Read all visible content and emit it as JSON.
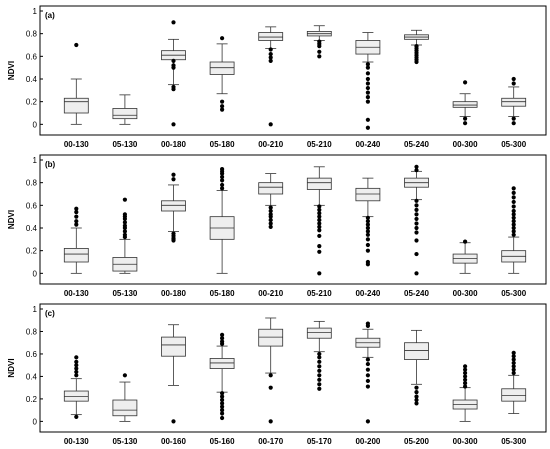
{
  "chart_data": [
    {
      "type": "box",
      "panel_label": "(a)",
      "ylabel": "NDVI",
      "ylim": [
        -0.05,
        1.0
      ],
      "yticks": [
        0,
        0.2,
        0.4,
        0.6,
        0.8,
        1
      ],
      "ytick_labels": [
        "0",
        "0.2",
        "0.4",
        "0.6",
        "0.8",
        "1"
      ],
      "categories": [
        "00-130",
        "05-130",
        "00-180",
        "05-180",
        "00-210",
        "05-210",
        "00-240",
        "05-240",
        "00-300",
        "05-300"
      ],
      "boxes": [
        {
          "min": 0.0,
          "q1": 0.1,
          "median": 0.2,
          "q3": 0.23,
          "max": 0.4,
          "outliers": [
            0.7
          ]
        },
        {
          "min": 0.0,
          "q1": 0.05,
          "median": 0.08,
          "q3": 0.14,
          "max": 0.26,
          "outliers": []
        },
        {
          "min": 0.35,
          "q1": 0.57,
          "median": 0.61,
          "q3": 0.65,
          "max": 0.75,
          "outliers": [
            0.9,
            0.56,
            0.52,
            0.5,
            0.33,
            0.31,
            0.0
          ]
        },
        {
          "min": 0.27,
          "q1": 0.44,
          "median": 0.5,
          "q3": 0.55,
          "max": 0.71,
          "outliers": [
            0.76,
            0.2,
            0.16,
            0.13
          ]
        },
        {
          "min": 0.67,
          "q1": 0.74,
          "median": 0.77,
          "q3": 0.81,
          "max": 0.86,
          "outliers": [
            0.66,
            0.62,
            0.59,
            0.56,
            0.0
          ]
        },
        {
          "min": 0.74,
          "q1": 0.78,
          "median": 0.8,
          "q3": 0.82,
          "max": 0.87,
          "outliers": [
            0.73,
            0.71,
            0.69,
            0.64,
            0.6
          ]
        },
        {
          "min": 0.55,
          "q1": 0.62,
          "median": 0.68,
          "q3": 0.74,
          "max": 0.81,
          "outliers": [
            0.53,
            0.5,
            0.45,
            0.4,
            0.36,
            0.32,
            0.28,
            0.24,
            0.2,
            0.04,
            -0.03
          ]
        },
        {
          "min": 0.7,
          "q1": 0.75,
          "median": 0.77,
          "q3": 0.79,
          "max": 0.83,
          "outliers": [
            0.69,
            0.67,
            0.65,
            0.63,
            0.61,
            0.59,
            0.57,
            0.55
          ]
        },
        {
          "min": 0.07,
          "q1": 0.15,
          "median": 0.17,
          "q3": 0.2,
          "max": 0.27,
          "outliers": [
            0.37,
            0.05,
            0.01
          ]
        },
        {
          "min": 0.07,
          "q1": 0.16,
          "median": 0.2,
          "q3": 0.23,
          "max": 0.33,
          "outliers": [
            0.4,
            0.36,
            0.05,
            0.01
          ]
        }
      ]
    },
    {
      "type": "box",
      "panel_label": "(b)",
      "ylabel": "NDVI",
      "ylim": [
        -0.05,
        1.0
      ],
      "yticks": [
        0,
        0.2,
        0.4,
        0.6,
        0.8,
        1
      ],
      "ytick_labels": [
        "0",
        "0.2",
        "0.4",
        "0.6",
        "0.8",
        "1"
      ],
      "categories": [
        "00-130",
        "05-130",
        "00-180",
        "05-180",
        "00-210",
        "05-210",
        "00-240",
        "05-240",
        "00-300",
        "05-300"
      ],
      "boxes": [
        {
          "min": 0.0,
          "q1": 0.1,
          "median": 0.17,
          "q3": 0.22,
          "max": 0.4,
          "outliers": [
            0.57,
            0.54,
            0.5,
            0.46,
            0.43
          ]
        },
        {
          "min": 0.0,
          "q1": 0.02,
          "median": 0.08,
          "q3": 0.14,
          "max": 0.3,
          "outliers": [
            0.65,
            0.52,
            0.5,
            0.48,
            0.45,
            0.42,
            0.4,
            0.37,
            0.34,
            0.32
          ]
        },
        {
          "min": 0.37,
          "q1": 0.55,
          "median": 0.6,
          "q3": 0.64,
          "max": 0.78,
          "outliers": [
            0.87,
            0.83,
            0.35,
            0.33,
            0.31,
            0.3,
            0.29
          ]
        },
        {
          "min": 0.0,
          "q1": 0.3,
          "median": 0.4,
          "q3": 0.5,
          "max": 0.73,
          "outliers": [
            0.92,
            0.9,
            0.88,
            0.85,
            0.82,
            0.78,
            0.75
          ]
        },
        {
          "min": 0.6,
          "q1": 0.7,
          "median": 0.76,
          "q3": 0.8,
          "max": 0.88,
          "outliers": [
            0.58,
            0.55,
            0.52,
            0.5,
            0.47,
            0.44,
            0.41
          ]
        },
        {
          "min": 0.6,
          "q1": 0.74,
          "median": 0.8,
          "q3": 0.84,
          "max": 0.94,
          "outliers": [
            0.59,
            0.56,
            0.53,
            0.5,
            0.47,
            0.44,
            0.41,
            0.38,
            0.33,
            0.24,
            0.19,
            0.0
          ]
        },
        {
          "min": 0.5,
          "q1": 0.64,
          "median": 0.7,
          "q3": 0.75,
          "max": 0.84,
          "outliers": [
            0.49,
            0.46,
            0.43,
            0.4,
            0.37,
            0.34,
            0.3,
            0.25,
            0.2,
            0.1,
            0.08
          ]
        },
        {
          "min": 0.65,
          "q1": 0.76,
          "median": 0.8,
          "q3": 0.84,
          "max": 0.9,
          "outliers": [
            0.94,
            0.91,
            0.64,
            0.6,
            0.56,
            0.52,
            0.48,
            0.44,
            0.4,
            0.36,
            0.29,
            0.17,
            0.0
          ]
        },
        {
          "min": 0.0,
          "q1": 0.09,
          "median": 0.13,
          "q3": 0.17,
          "max": 0.27,
          "outliers": [
            0.28
          ]
        },
        {
          "min": 0.0,
          "q1": 0.1,
          "median": 0.15,
          "q3": 0.2,
          "max": 0.32,
          "outliers": [
            0.75,
            0.71,
            0.67,
            0.63,
            0.59,
            0.55,
            0.52,
            0.49,
            0.46,
            0.43,
            0.4,
            0.37,
            0.34
          ]
        }
      ]
    },
    {
      "type": "box",
      "panel_label": "(c)",
      "ylabel": "NDVI",
      "ylim": [
        -0.05,
        1.0
      ],
      "yticks": [
        0,
        0.2,
        0.4,
        0.6,
        0.8,
        1
      ],
      "ytick_labels": [
        "0",
        "0.2",
        "0.4",
        "0.6",
        "0.8",
        "1"
      ],
      "categories": [
        "00-130",
        "05-130",
        "00-160",
        "05-160",
        "00-170",
        "05-170",
        "00-200",
        "05-200",
        "00-300",
        "05-300"
      ],
      "boxes": [
        {
          "min": 0.06,
          "q1": 0.18,
          "median": 0.22,
          "q3": 0.27,
          "max": 0.38,
          "outliers": [
            0.57,
            0.53,
            0.5,
            0.47,
            0.44,
            0.41,
            0.04
          ]
        },
        {
          "min": 0.0,
          "q1": 0.05,
          "median": 0.1,
          "q3": 0.19,
          "max": 0.35,
          "outliers": [
            0.41
          ]
        },
        {
          "min": 0.32,
          "q1": 0.58,
          "median": 0.68,
          "q3": 0.75,
          "max": 0.86,
          "outliers": [
            0.0
          ]
        },
        {
          "min": 0.26,
          "q1": 0.47,
          "median": 0.52,
          "q3": 0.56,
          "max": 0.67,
          "outliers": [
            0.77,
            0.74,
            0.71,
            0.69,
            0.25,
            0.22,
            0.19,
            0.16,
            0.13,
            0.1,
            0.07,
            0.03
          ]
        },
        {
          "min": 0.43,
          "q1": 0.67,
          "median": 0.75,
          "q3": 0.82,
          "max": 0.92,
          "outliers": [
            0.41,
            0.3,
            0.0
          ]
        },
        {
          "min": 0.62,
          "q1": 0.74,
          "median": 0.79,
          "q3": 0.83,
          "max": 0.89,
          "outliers": [
            0.6,
            0.57,
            0.53,
            0.49,
            0.45,
            0.41,
            0.37,
            0.33,
            0.29
          ]
        },
        {
          "min": 0.57,
          "q1": 0.66,
          "median": 0.7,
          "q3": 0.74,
          "max": 0.82,
          "outliers": [
            0.87,
            0.85,
            0.55,
            0.51,
            0.46,
            0.41,
            0.36,
            0.31,
            0.0
          ]
        },
        {
          "min": 0.33,
          "q1": 0.55,
          "median": 0.63,
          "q3": 0.7,
          "max": 0.81,
          "outliers": [
            0.3,
            0.26,
            0.22,
            0.19,
            0.16
          ]
        },
        {
          "min": 0.0,
          "q1": 0.11,
          "median": 0.15,
          "q3": 0.19,
          "max": 0.3,
          "outliers": [
            0.49,
            0.46,
            0.43,
            0.4,
            0.37,
            0.34,
            0.31
          ]
        },
        {
          "min": 0.07,
          "q1": 0.18,
          "median": 0.23,
          "q3": 0.29,
          "max": 0.41,
          "outliers": [
            0.61,
            0.58,
            0.55,
            0.52,
            0.49,
            0.46,
            0.43
          ]
        }
      ]
    }
  ]
}
